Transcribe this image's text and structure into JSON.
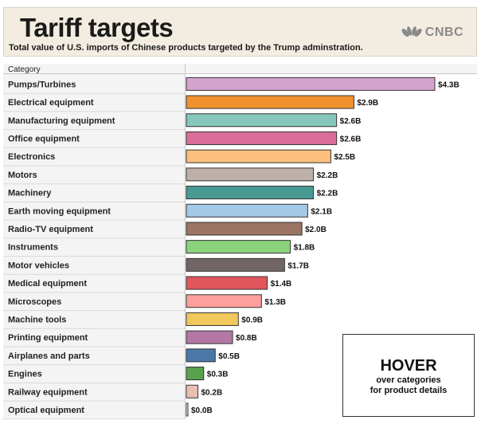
{
  "header": {
    "title": "Tariff targets",
    "subtitle": "Total value of U.S. imports of Chinese products targeted by the Trump adminstration.",
    "logo_text": "CNBC"
  },
  "hover_box": {
    "title": "HOVER",
    "line1": "over categories",
    "line2": "for product details"
  },
  "chart_data": {
    "type": "bar",
    "orientation": "horizontal",
    "category_header": "Category",
    "categories": [
      "Pumps/Turbines",
      "Electrical equipment",
      "Manufacturing equipment",
      "Office equipment",
      "Electronics",
      "Motors",
      "Machinery",
      "Earth moving equipment",
      "Radio-TV equipment",
      "Instruments",
      "Motor vehicles",
      "Medical equipment",
      "Microscopes",
      "Machine tools",
      "Printing equipment",
      "Airplanes and parts",
      "Engines",
      "Railway equipment",
      "Optical equipment"
    ],
    "values": [
      4.3,
      2.9,
      2.6,
      2.6,
      2.5,
      2.2,
      2.2,
      2.1,
      2.0,
      1.8,
      1.7,
      1.4,
      1.3,
      0.9,
      0.8,
      0.5,
      0.3,
      0.2,
      0.0
    ],
    "labels": [
      "$4.3B",
      "$2.9B",
      "$2.6B",
      "$2.6B",
      "$2.5B",
      "$2.2B",
      "$2.2B",
      "$2.1B",
      "$2.0B",
      "$1.8B",
      "$1.7B",
      "$1.4B",
      "$1.3B",
      "$0.9B",
      "$0.8B",
      "$0.5B",
      "$0.3B",
      "$0.2B",
      "$0.0B"
    ],
    "colors": [
      "#d4a3cf",
      "#f0922e",
      "#86c7bb",
      "#d96e98",
      "#fcbf7e",
      "#bdb0a9",
      "#4a9a94",
      "#a3c9e6",
      "#9b7463",
      "#8bd27c",
      "#716565",
      "#e1565c",
      "#fd9f9c",
      "#f0c85c",
      "#b378a6",
      "#4a78a8",
      "#58a24e",
      "#e9bfb3",
      "#ffffff"
    ],
    "xlim": [
      0,
      4.3
    ],
    "grid": false,
    "legend": "none"
  }
}
